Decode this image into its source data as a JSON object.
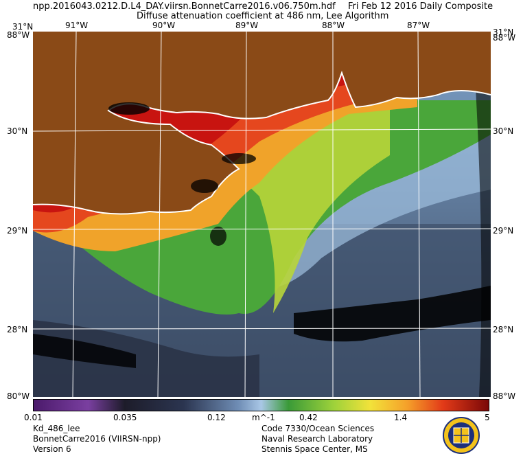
{
  "header": {
    "filename": "npp.2016043.0212.D.L4_DAY.viirsn.BonnetCarre2016.v06.750m.hdf",
    "date": "Fri Feb 12 2016 Daily Composite",
    "subtitle": "Diffuse attenuation coefficient at 486 nm, Lee Algorithm"
  },
  "map": {
    "lon_labels": [
      "91°W",
      "90°W",
      "89°W",
      "88°W",
      "87°W"
    ],
    "lat_labels": [
      "30°N",
      "29°N",
      "28°N"
    ],
    "corner_labels": {
      "top_left": "31°N",
      "top_right": "31°N",
      "top_left_w": "88°W",
      "top_right_w": "88°W",
      "bottom_left": "80°W",
      "bottom_right": "88°W"
    },
    "colors": {
      "land": "#8a4a17",
      "deep": "#3a4a63",
      "nodata": "#000000",
      "coast": "#ffffff"
    }
  },
  "colorbar": {
    "ticks": [
      "0.01",
      "0.035",
      "0.12",
      "0.42",
      "1.4",
      "5"
    ],
    "unit": "m^-1"
  },
  "footer": {
    "left": [
      "Kd_486_lee",
      "BonnetCarre2016 (VIIRSN-npp)",
      "Version 6"
    ],
    "right": [
      "Code 7330/Ocean Sciences",
      "Naval Research Laboratory",
      "Stennis Space Center, MS"
    ]
  }
}
